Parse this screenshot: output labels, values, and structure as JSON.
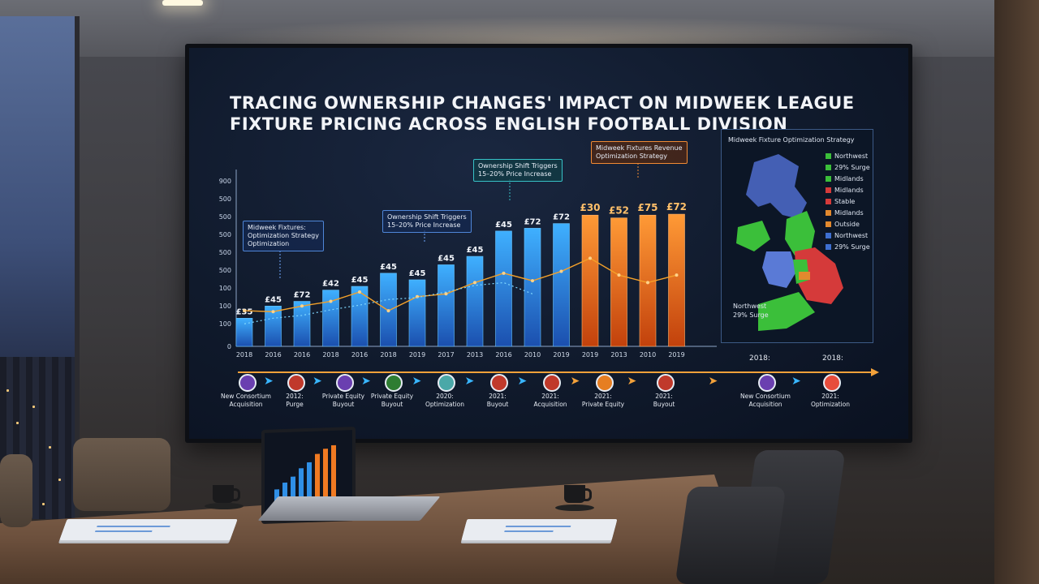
{
  "title_lines": [
    "Tracing Ownership Changes' Impact on Midweek League",
    "Fixture Pricing Across English Football Division"
  ],
  "callouts": {
    "c1_line1": "Midweek Fixtures:",
    "c1_line2": "Optimization Strategy",
    "c1_line3": "Optimization",
    "c2_line1": "Ownership Shift Triggers",
    "c2_line2": "15–20% Price Increase",
    "c3_line1": "Ownership Shift Triggers",
    "c3_line2": "15–20% Price Increase",
    "c4_line1": "Midweek Fixtures Revenue",
    "c4_line2": "Optimization Strategy"
  },
  "map": {
    "title": "Midweek Fixture Optimization Strategy",
    "legend": [
      {
        "label": "Northwest",
        "color": "#3bbf3a"
      },
      {
        "label": "29% Surge",
        "color": "#3bbf3a"
      },
      {
        "label": "Midlands",
        "color": "#3bbf3a"
      },
      {
        "label": "Midlands",
        "color": "#d53a3a"
      },
      {
        "label": "Stable",
        "color": "#d53a3a"
      },
      {
        "label": "Midlands",
        "color": "#e2892e"
      },
      {
        "label": "Outside",
        "color": "#e2892e"
      },
      {
        "label": "Northwest",
        "color": "#3e6fd0"
      },
      {
        "label": "29% Surge",
        "color": "#3e6fd0"
      }
    ],
    "note_line1": "Northwest",
    "note_line2": "29% Surge"
  },
  "timeline": [
    {
      "line1": "New Consortium",
      "line2": "Acquisition"
    },
    {
      "line1": "2012:",
      "line2": "Purge"
    },
    {
      "line1": "Private Equity",
      "line2": "Buyout"
    },
    {
      "line1": "Private Equity",
      "line2": "Buyout"
    },
    {
      "line1": "2020:",
      "line2": "Optimization"
    },
    {
      "line1": "2021:",
      "line2": "Buyout"
    },
    {
      "line1": "2021:",
      "line2": "Acquisition"
    },
    {
      "line1": "2021:",
      "line2": "Private Equity"
    },
    {
      "line1": "2021:",
      "line2": "Buyout"
    },
    {
      "line1": "New Consortium",
      "line2": "Acquisition"
    },
    {
      "line1": "2021:",
      "line2": "Optimization"
    }
  ],
  "timeline_years": [
    "2018:",
    "2018:"
  ],
  "chart_data": {
    "type": "bar",
    "title": "Tracing Ownership Changes' Impact on Midweek League Fixture Pricing Across English Football Division",
    "categories": [
      "2018",
      "2016",
      "2016",
      "2018",
      "2016",
      "2018",
      "2019",
      "2017",
      "2013",
      "2016",
      "2010",
      "2019",
      "2019",
      "2013",
      "2010",
      "2019"
    ],
    "series": [
      {
        "values": [
          150,
          215,
          240,
          300,
          320,
          390,
          355,
          435,
          480,
          615,
          630,
          655,
          700,
          685,
          700,
          705
        ],
        "labels": [
          "£35",
          "£45",
          "£72",
          "£42",
          "£45",
          "£45",
          "£45",
          "£45",
          "£45",
          "£45",
          "£72",
          "£72",
          "£30",
          "£52",
          "£75",
          "£72"
        ]
      }
    ],
    "line_values": [
      190,
      185,
      215,
      240,
      290,
      190,
      265,
      280,
      340,
      390,
      350,
      400,
      470,
      380,
      340,
      380
    ],
    "trend_values": [
      120,
      150,
      165,
      195,
      220,
      250,
      260,
      290,
      325,
      340,
      280,
      null,
      null,
      null,
      null,
      null
    ],
    "yticks": [
      "100",
      "100",
      "100",
      "500",
      "500",
      "500",
      "500",
      "500",
      "900"
    ],
    "phases": [
      "blue",
      "blue",
      "blue",
      "blue",
      "blue",
      "blue",
      "blue",
      "blue",
      "blue",
      "blue",
      "blue",
      "blue",
      "orange",
      "orange",
      "orange",
      "orange"
    ],
    "colors": {
      "blue": "#2f8fe6",
      "orange": "#f07a22",
      "line": "#f4a12a",
      "trend": "#7fd7ff"
    },
    "ylim": [
      0,
      900
    ],
    "legend": "none"
  }
}
